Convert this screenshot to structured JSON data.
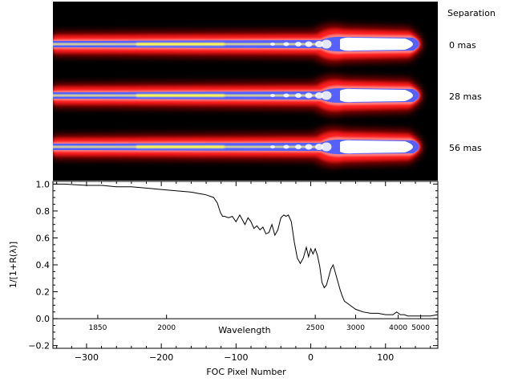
{
  "chart_data": [
    {
      "type": "heatmap",
      "image_kind": "false-color dispersed spectra",
      "colormap": [
        "#000000",
        "#7a0000",
        "#ff1a1a",
        "#ff8080",
        "#5560ff",
        "#c8c8a0",
        "#ffff50",
        "#ffffff"
      ],
      "header_label": "Separation",
      "rows": [
        {
          "label": "0 mas"
        },
        {
          "label": "28 mas"
        },
        {
          "label": "56 mas"
        }
      ]
    },
    {
      "type": "line",
      "ylabel": "1/[1+R(λ)]",
      "xlabel": "FOC Pixel Number",
      "secondary_xlabel": "Wavelength",
      "xlim": [
        -345,
        170
      ],
      "ylim": [
        -0.22,
        1.02
      ],
      "x_ticks": [
        -300,
        -200,
        -100,
        0,
        100
      ],
      "x_tick_labels": [
        "−300",
        "−200",
        "−100",
        "0",
        "100"
      ],
      "y_ticks": [
        -0.2,
        0.0,
        0.2,
        0.4,
        0.6,
        0.8,
        1.0
      ],
      "y_tick_labels": [
        "−0.2",
        "0.0",
        "0.2",
        "0.4",
        "0.6",
        "0.8",
        "1.0"
      ],
      "wavelength_ticks": [
        {
          "label": "1850",
          "pixel": -285
        },
        {
          "label": "2000",
          "pixel": -193
        },
        {
          "label": "2500",
          "pixel": 6
        },
        {
          "label": "3000",
          "pixel": 60
        },
        {
          "label": "4000",
          "pixel": 117
        },
        {
          "label": "5000",
          "pixel": 147
        }
      ],
      "grid": false,
      "line_color": "#000000",
      "series": [
        {
          "x": [
            -345,
            -330,
            -300,
            -280,
            -260,
            -240,
            -220,
            -200,
            -180,
            -160,
            -150,
            -140,
            -130,
            -125,
            -121,
            -118,
            -115,
            -110,
            -105,
            -100,
            -95,
            -92,
            -88,
            -84,
            -80,
            -76,
            -72,
            -68,
            -64,
            -60,
            -56,
            -52,
            -48,
            -44,
            -40,
            -36,
            -33,
            -30,
            -26,
            -22,
            -18,
            -14,
            -10,
            -6,
            -3,
            0,
            3,
            6,
            9,
            12,
            15,
            18,
            21,
            24,
            27,
            30,
            33,
            36,
            39,
            42,
            45,
            50,
            55,
            60,
            65,
            70,
            80,
            90,
            100,
            110,
            115,
            120,
            125,
            130,
            140,
            150,
            160,
            170
          ],
          "y": [
            1.0,
            1.0,
            0.99,
            0.99,
            0.98,
            0.98,
            0.97,
            0.96,
            0.95,
            0.94,
            0.93,
            0.92,
            0.9,
            0.86,
            0.79,
            0.76,
            0.76,
            0.75,
            0.76,
            0.72,
            0.77,
            0.74,
            0.7,
            0.75,
            0.72,
            0.67,
            0.69,
            0.66,
            0.68,
            0.63,
            0.64,
            0.7,
            0.62,
            0.66,
            0.75,
            0.77,
            0.76,
            0.77,
            0.72,
            0.57,
            0.45,
            0.41,
            0.45,
            0.53,
            0.46,
            0.52,
            0.48,
            0.52,
            0.47,
            0.39,
            0.27,
            0.23,
            0.25,
            0.31,
            0.37,
            0.4,
            0.34,
            0.28,
            0.22,
            0.17,
            0.13,
            0.11,
            0.09,
            0.07,
            0.06,
            0.05,
            0.04,
            0.04,
            0.03,
            0.03,
            0.05,
            0.03,
            0.03,
            0.02,
            0.02,
            0.02,
            0.02,
            0.03
          ]
        }
      ]
    }
  ]
}
